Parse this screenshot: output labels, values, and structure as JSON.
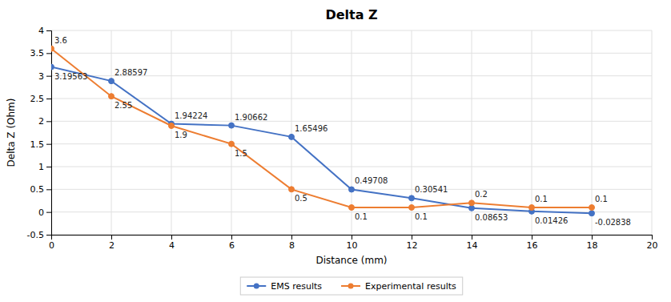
{
  "chart_data": {
    "type": "line",
    "title": "Delta Z",
    "xlabel": "Distance (mm)",
    "ylabel": "Delta Z (Ohm)",
    "x": [
      0,
      2,
      4,
      6,
      8,
      10,
      12,
      14,
      16,
      18
    ],
    "series": [
      {
        "name": "EMS results",
        "color": "#4472C4",
        "marker": "circle",
        "values": [
          3.19563,
          2.88597,
          1.94224,
          1.90662,
          1.65496,
          0.49708,
          0.30541,
          0.08653,
          0.01426,
          -0.02838
        ]
      },
      {
        "name": "Experimental results",
        "color": "#ED7D31",
        "marker": "circle",
        "values": [
          3.6,
          2.55,
          1.9,
          1.5,
          0.5,
          0.1,
          0.1,
          0.2,
          0.1,
          0.1
        ]
      }
    ],
    "xlim": [
      0,
      20
    ],
    "ylim": [
      -0.5,
      4
    ],
    "xticks": [
      0,
      2,
      4,
      6,
      8,
      10,
      12,
      14,
      16,
      18,
      20
    ],
    "yticks": [
      -0.5,
      0,
      0.5,
      1,
      1.5,
      2,
      2.5,
      3,
      3.5,
      4
    ],
    "grid": true,
    "legend": "bottom",
    "data_labels": true
  }
}
